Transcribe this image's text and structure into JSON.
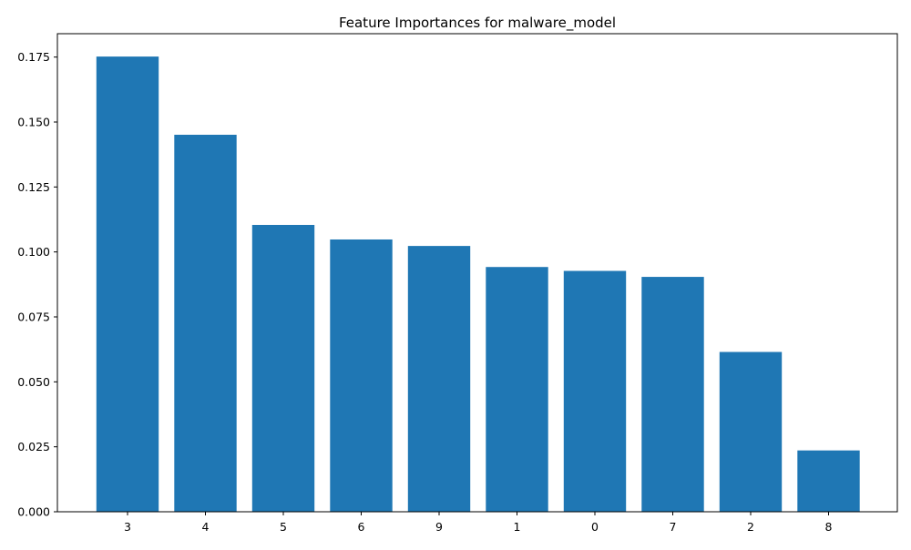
{
  "chart_data": {
    "type": "bar",
    "title": "Feature Importances for malware_model",
    "xlabel": "",
    "ylabel": "",
    "categories": [
      "3",
      "4",
      "5",
      "6",
      "9",
      "1",
      "0",
      "7",
      "2",
      "8"
    ],
    "values": [
      0.1752,
      0.1451,
      0.1104,
      0.1048,
      0.1023,
      0.0942,
      0.0927,
      0.0904,
      0.0615,
      0.0236
    ],
    "ylim": [
      0,
      0.184
    ],
    "yticks": [
      0.0,
      0.025,
      0.05,
      0.075,
      0.1,
      0.125,
      0.15,
      0.175
    ],
    "ytick_labels": [
      "0.000",
      "0.025",
      "0.050",
      "0.075",
      "0.100",
      "0.125",
      "0.150",
      "0.175"
    ],
    "bar_color": "#1f77b4",
    "grid": false,
    "legend": "none"
  }
}
